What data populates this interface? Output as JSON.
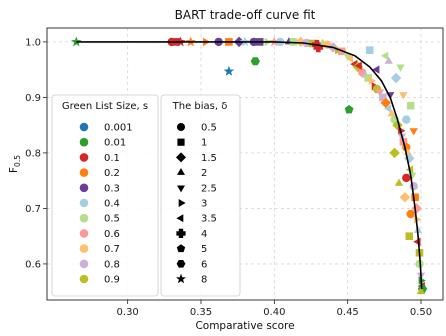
{
  "chart_data": {
    "type": "scatter",
    "title": "BART trade-off curve fit",
    "xlabel": "Comparative score",
    "ylabel_main": "F",
    "ylabel_sub": "0.5",
    "xlim": [
      0.245,
      0.515
    ],
    "ylim": [
      0.535,
      1.025
    ],
    "xticks": [
      0.3,
      0.35,
      0.4,
      0.45,
      0.5
    ],
    "xtick_labels": [
      "0.30",
      "0.35",
      "0.40",
      "0.45",
      "0.50"
    ],
    "yticks": [
      0.6,
      0.7,
      0.8,
      0.9,
      1.0
    ],
    "ytick_labels": [
      "0.6",
      "0.7",
      "0.8",
      "0.9",
      "1.0"
    ],
    "grid": true,
    "legend_size": {
      "title": "Green List Size, s",
      "placement": "lower-left",
      "items": [
        {
          "label": "0.001",
          "color": "#1f77b4"
        },
        {
          "label": "0.01",
          "color": "#2ca02c"
        },
        {
          "label": "0.1",
          "color": "#d62728"
        },
        {
          "label": "0.2",
          "color": "#ff7f0e"
        },
        {
          "label": "0.3",
          "color": "#6a3d9a"
        },
        {
          "label": "0.4",
          "color": "#a6cee3"
        },
        {
          "label": "0.5",
          "color": "#b2df8a"
        },
        {
          "label": "0.6",
          "color": "#fb9a99"
        },
        {
          "label": "0.7",
          "color": "#fdbf6f"
        },
        {
          "label": "0.8",
          "color": "#cab2d6"
        },
        {
          "label": "0.9",
          "color": "#bcbd22"
        }
      ]
    },
    "legend_bias": {
      "title": "The bias, δ",
      "items": [
        {
          "label": "0.5",
          "marker": "circle"
        },
        {
          "label": "1",
          "marker": "square"
        },
        {
          "label": "1.5",
          "marker": "diamond"
        },
        {
          "label": "2",
          "marker": "triangle-up"
        },
        {
          "label": "2.5",
          "marker": "triangle-down"
        },
        {
          "label": "3",
          "marker": "triangle-right"
        },
        {
          "label": "3.5",
          "marker": "triangle-left"
        },
        {
          "label": "4",
          "marker": "plus"
        },
        {
          "label": "5",
          "marker": "pentagon"
        },
        {
          "label": "6",
          "marker": "hexagon"
        },
        {
          "label": "8",
          "marker": "star"
        }
      ]
    },
    "fit_curve": {
      "color": "#000000",
      "points": [
        [
          0.265,
          1.0
        ],
        [
          0.4,
          1.0
        ],
        [
          0.42,
          0.998
        ],
        [
          0.44,
          0.99
        ],
        [
          0.455,
          0.975
        ],
        [
          0.465,
          0.955
        ],
        [
          0.473,
          0.93
        ],
        [
          0.479,
          0.9
        ],
        [
          0.484,
          0.86
        ],
        [
          0.489,
          0.81
        ],
        [
          0.493,
          0.76
        ],
        [
          0.496,
          0.7
        ],
        [
          0.498,
          0.65
        ],
        [
          0.4995,
          0.6
        ],
        [
          0.5005,
          0.555
        ]
      ]
    },
    "points": [
      {
        "x": 0.265,
        "y": 1.0,
        "s": 1,
        "m": 10
      },
      {
        "x": 0.33,
        "y": 1.0,
        "s": 2,
        "m": 0
      },
      {
        "x": 0.333,
        "y": 1.0,
        "s": 2,
        "m": 1
      },
      {
        "x": 0.336,
        "y": 1.0,
        "s": 2,
        "m": 10
      },
      {
        "x": 0.343,
        "y": 1.0,
        "s": 3,
        "m": 10
      },
      {
        "x": 0.353,
        "y": 1.0,
        "s": 3,
        "m": 5
      },
      {
        "x": 0.362,
        "y": 1.0,
        "s": 4,
        "m": 0
      },
      {
        "x": 0.369,
        "y": 1.0,
        "s": 3,
        "m": 1
      },
      {
        "x": 0.376,
        "y": 1.0,
        "s": 4,
        "m": 2
      },
      {
        "x": 0.38,
        "y": 1.0,
        "s": 5,
        "m": 10
      },
      {
        "x": 0.386,
        "y": 1.0,
        "s": 4,
        "m": 0
      },
      {
        "x": 0.39,
        "y": 1.0,
        "s": 4,
        "m": 1
      },
      {
        "x": 0.395,
        "y": 1.0,
        "s": 6,
        "m": 5
      },
      {
        "x": 0.4,
        "y": 1.0,
        "s": 7,
        "m": 10
      },
      {
        "x": 0.404,
        "y": 1.0,
        "s": 5,
        "m": 0
      },
      {
        "x": 0.41,
        "y": 1.0,
        "s": 4,
        "m": 3
      },
      {
        "x": 0.413,
        "y": 1.0,
        "s": 6,
        "m": 1
      },
      {
        "x": 0.418,
        "y": 1.0,
        "s": 8,
        "m": 2
      },
      {
        "x": 0.422,
        "y": 0.998,
        "s": 9,
        "m": 0
      },
      {
        "x": 0.426,
        "y": 0.997,
        "s": 10,
        "m": 1
      },
      {
        "x": 0.429,
        "y": 0.995,
        "s": 2,
        "m": 7
      },
      {
        "x": 0.433,
        "y": 0.997,
        "s": 6,
        "m": 3
      },
      {
        "x": 0.436,
        "y": 0.995,
        "s": 8,
        "m": 0
      },
      {
        "x": 0.44,
        "y": 0.99,
        "s": 9,
        "m": 2
      },
      {
        "x": 0.443,
        "y": 0.985,
        "s": 10,
        "m": 5
      },
      {
        "x": 0.446,
        "y": 0.983,
        "s": 7,
        "m": 1
      },
      {
        "x": 0.45,
        "y": 0.975,
        "s": 6,
        "m": 4
      },
      {
        "x": 0.452,
        "y": 0.97,
        "s": 8,
        "m": 6
      },
      {
        "x": 0.455,
        "y": 0.96,
        "s": 2,
        "m": 6
      },
      {
        "x": 0.457,
        "y": 0.955,
        "s": 10,
        "m": 2
      },
      {
        "x": 0.46,
        "y": 0.945,
        "s": 7,
        "m": 0
      },
      {
        "x": 0.462,
        "y": 0.94,
        "s": 9,
        "m": 3
      },
      {
        "x": 0.464,
        "y": 0.935,
        "s": 6,
        "m": 1
      },
      {
        "x": 0.466,
        "y": 0.93,
        "s": 8,
        "m": 5
      },
      {
        "x": 0.468,
        "y": 0.92,
        "s": 2,
        "m": 5
      },
      {
        "x": 0.47,
        "y": 0.915,
        "s": 10,
        "m": 0
      },
      {
        "x": 0.472,
        "y": 0.91,
        "s": 7,
        "m": 4
      },
      {
        "x": 0.474,
        "y": 0.9,
        "s": 9,
        "m": 1
      },
      {
        "x": 0.476,
        "y": 0.89,
        "s": 3,
        "m": 2
      },
      {
        "x": 0.478,
        "y": 0.88,
        "s": 5,
        "m": 6
      },
      {
        "x": 0.48,
        "y": 0.87,
        "s": 8,
        "m": 3
      },
      {
        "x": 0.482,
        "y": 0.86,
        "s": 6,
        "m": 0
      },
      {
        "x": 0.484,
        "y": 0.85,
        "s": 10,
        "m": 2
      },
      {
        "x": 0.486,
        "y": 0.84,
        "s": 2,
        "m": 5
      },
      {
        "x": 0.487,
        "y": 0.83,
        "s": 9,
        "m": 4
      },
      {
        "x": 0.488,
        "y": 0.82,
        "s": 7,
        "m": 1
      },
      {
        "x": 0.49,
        "y": 0.81,
        "s": 3,
        "m": 0
      },
      {
        "x": 0.491,
        "y": 0.8,
        "s": 8,
        "m": 3
      },
      {
        "x": 0.492,
        "y": 0.79,
        "s": 5,
        "m": 2
      },
      {
        "x": 0.493,
        "y": 0.77,
        "s": 10,
        "m": 6
      },
      {
        "x": 0.494,
        "y": 0.76,
        "s": 6,
        "m": 4
      },
      {
        "x": 0.495,
        "y": 0.74,
        "s": 9,
        "m": 0
      },
      {
        "x": 0.496,
        "y": 0.72,
        "s": 3,
        "m": 1
      },
      {
        "x": 0.497,
        "y": 0.7,
        "s": 7,
        "m": 2
      },
      {
        "x": 0.497,
        "y": 0.68,
        "s": 8,
        "m": 5
      },
      {
        "x": 0.498,
        "y": 0.66,
        "s": 5,
        "m": 3
      },
      {
        "x": 0.498,
        "y": 0.64,
        "s": 2,
        "m": 6
      },
      {
        "x": 0.499,
        "y": 0.62,
        "s": 10,
        "m": 1
      },
      {
        "x": 0.499,
        "y": 0.6,
        "s": 6,
        "m": 0
      },
      {
        "x": 0.5,
        "y": 0.58,
        "s": 9,
        "m": 4
      },
      {
        "x": 0.5,
        "y": 0.57,
        "s": 1,
        "m": 5
      },
      {
        "x": 0.501,
        "y": 0.56,
        "s": 2,
        "m": 6
      },
      {
        "x": 0.501,
        "y": 0.555,
        "s": 1,
        "m": 9
      },
      {
        "x": 0.5,
        "y": 0.55,
        "s": 10,
        "m": 3
      },
      {
        "x": 0.369,
        "y": 0.947,
        "s": 0,
        "m": 10
      },
      {
        "x": 0.387,
        "y": 0.965,
        "s": 1,
        "m": 9
      },
      {
        "x": 0.451,
        "y": 0.878,
        "s": 1,
        "m": 8
      },
      {
        "x": 0.43,
        "y": 0.99,
        "s": 2,
        "m": 7
      },
      {
        "x": 0.458,
        "y": 0.957,
        "s": 2,
        "m": 6
      },
      {
        "x": 0.47,
        "y": 0.95,
        "s": 4,
        "m": 6
      },
      {
        "x": 0.465,
        "y": 0.985,
        "s": 5,
        "m": 1
      },
      {
        "x": 0.478,
        "y": 0.965,
        "s": 9,
        "m": 3
      },
      {
        "x": 0.476,
        "y": 0.975,
        "s": 6,
        "m": 6
      },
      {
        "x": 0.486,
        "y": 0.955,
        "s": 6,
        "m": 4
      },
      {
        "x": 0.483,
        "y": 0.935,
        "s": 5,
        "m": 2
      },
      {
        "x": 0.488,
        "y": 0.905,
        "s": 8,
        "m": 4
      },
      {
        "x": 0.479,
        "y": 0.905,
        "s": 4,
        "m": 4
      },
      {
        "x": 0.493,
        "y": 0.885,
        "s": 6,
        "m": 1
      },
      {
        "x": 0.49,
        "y": 0.86,
        "s": 5,
        "m": 0
      },
      {
        "x": 0.495,
        "y": 0.84,
        "s": 3,
        "m": 4
      },
      {
        "x": 0.493,
        "y": 0.69,
        "s": 3,
        "m": 0
      },
      {
        "x": 0.489,
        "y": 0.72,
        "s": 8,
        "m": 2
      },
      {
        "x": 0.492,
        "y": 0.65,
        "s": 10,
        "m": 1
      },
      {
        "x": 0.485,
        "y": 0.745,
        "s": 10,
        "m": 3
      },
      {
        "x": 0.49,
        "y": 0.755,
        "s": 2,
        "m": 0
      },
      {
        "x": 0.482,
        "y": 0.8,
        "s": 10,
        "m": 2
      }
    ]
  }
}
